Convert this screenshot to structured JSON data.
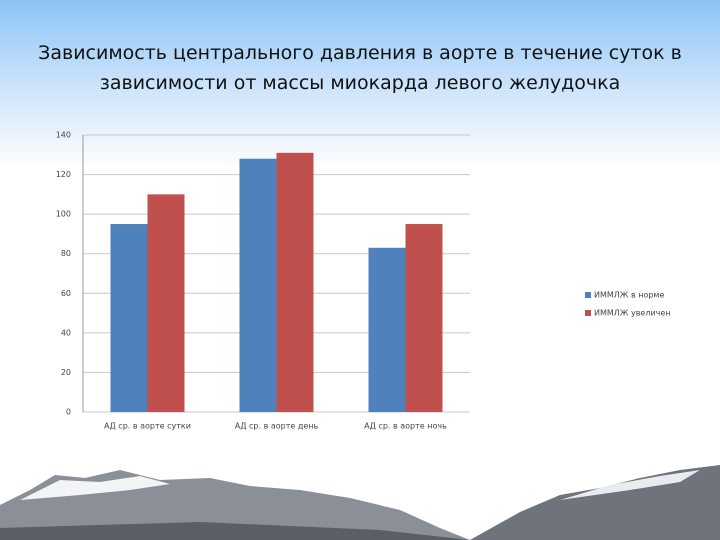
{
  "chart_data": {
    "type": "bar",
    "title": "Зависимость центрального давления в аорте в течение суток в зависимости от массы миокарда левого желудочка",
    "categories": [
      "АД ср. в аорте сутки",
      "АД ср. в аорте день",
      "АД ср. в аорте ночь"
    ],
    "series": [
      {
        "name": "ИММЛЖ в норме",
        "color": "#4f81bd",
        "values": [
          95,
          128,
          83
        ]
      },
      {
        "name": "ИММЛЖ увеличен",
        "color": "#c0504d",
        "values": [
          110,
          131,
          95
        ]
      }
    ],
    "ylim": [
      0,
      140
    ],
    "yticks": [
      0,
      20,
      40,
      60,
      80,
      100,
      120,
      140
    ],
    "grid": true,
    "legend": "right"
  }
}
